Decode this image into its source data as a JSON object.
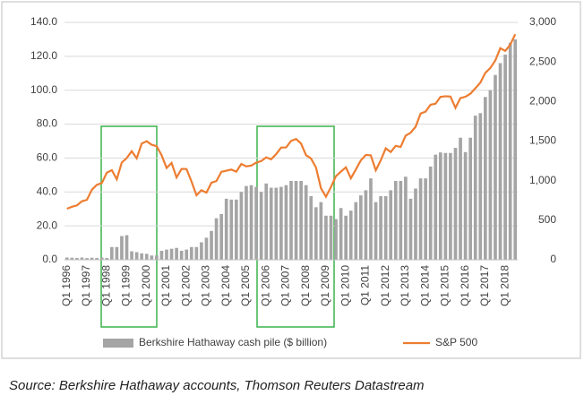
{
  "chart_data": {
    "type": "combo",
    "source": "Source: Berkshire Hathaway accounts, Thomson Reuters Datastream",
    "categories": [
      "Q1 1996",
      null,
      null,
      null,
      "Q1 1997",
      null,
      null,
      null,
      "Q1 1998",
      null,
      null,
      null,
      "Q1 1999",
      null,
      null,
      null,
      "Q1 2000",
      null,
      null,
      null,
      "Q1 2001",
      null,
      null,
      null,
      "Q1 2002",
      null,
      null,
      null,
      "Q1 2003",
      null,
      null,
      null,
      "Q1 2004",
      null,
      null,
      null,
      "Q1 2005",
      null,
      null,
      null,
      "Q1 2006",
      null,
      null,
      null,
      "Q1 2007",
      null,
      null,
      null,
      "Q1 2008",
      null,
      null,
      null,
      "Q1 2009",
      null,
      null,
      null,
      "Q1 2010",
      null,
      null,
      null,
      "Q1 2011",
      null,
      null,
      null,
      "Q1 2012",
      null,
      null,
      null,
      "Q1 2013",
      null,
      null,
      null,
      "Q1 2014",
      null,
      null,
      null,
      "Q1 2015",
      null,
      null,
      null,
      "Q1 2016",
      null,
      null,
      null,
      "Q1 2017",
      null,
      null,
      null,
      "Q1 2018",
      null,
      null
    ],
    "series": [
      {
        "name": "Berkshire Hathaway cash pile ($ billion)",
        "type": "bar",
        "color": "#a5a5a5",
        "values": [
          1.3,
          1.2,
          1.1,
          1.3,
          1.0,
          1.2,
          1.1,
          1.3,
          1.1,
          7.5,
          7.5,
          14,
          14.5,
          5,
          4.5,
          3.8,
          3.5,
          2.5,
          2.5,
          5.3,
          6,
          6.5,
          7,
          5.3,
          6,
          7.5,
          7.5,
          10.3,
          13,
          17,
          24.5,
          27,
          36,
          35.5,
          35.5,
          40,
          43.5,
          44,
          43,
          40,
          45,
          42.5,
          42.5,
          43,
          44,
          46.5,
          46.5,
          46.5,
          44,
          37.5,
          31,
          34,
          26,
          26,
          24,
          30.5,
          26,
          29,
          34,
          38,
          41,
          48,
          34,
          37.5,
          37.5,
          41,
          46.5,
          46.5,
          49,
          36,
          42,
          48,
          48,
          55,
          62,
          63.3,
          63,
          63,
          66,
          72,
          63.5,
          72,
          85,
          86.5,
          96,
          100,
          109,
          116,
          121,
          128,
          130
        ]
      },
      {
        "name": "S&P 500",
        "type": "line",
        "axis": "y2",
        "color": "#ed7d31",
        "values": [
          645,
          670,
          687,
          740,
          757,
          885,
          947,
          970,
          1101,
          1133,
          1017,
          1229,
          1286,
          1372,
          1282,
          1469,
          1498,
          1454,
          1436,
          1320,
          1160,
          1224,
          1040,
          1148,
          1147,
          989,
          815,
          879,
          848,
          974,
          995,
          1111,
          1126,
          1140,
          1114,
          1211,
          1180,
          1191,
          1228,
          1248,
          1294,
          1270,
          1335,
          1418,
          1420,
          1503,
          1526,
          1468,
          1322,
          1280,
          1166,
          903,
          797,
          919,
          1057,
          1115,
          1169,
          1030,
          1141,
          1257,
          1325,
          1320,
          1131,
          1257,
          1408,
          1362,
          1440,
          1426,
          1569,
          1606,
          1681,
          1848,
          1872,
          1960,
          1972,
          2059,
          2067,
          2063,
          1920,
          2044,
          2060,
          2099,
          2168,
          2239,
          2363,
          2423,
          2519,
          2674,
          2640,
          2718,
          2850
        ]
      }
    ],
    "ylim": [
      0,
      140
    ],
    "yticks": [
      {
        "value": 0,
        "label": "0.0"
      },
      {
        "value": 20,
        "label": "20.0"
      },
      {
        "value": 40,
        "label": "40.0"
      },
      {
        "value": 60,
        "label": "60.0"
      },
      {
        "value": 80,
        "label": "80.0"
      },
      {
        "value": 100,
        "label": "100.0"
      },
      {
        "value": 120,
        "label": "120.0"
      },
      {
        "value": 140,
        "label": "140.0"
      }
    ],
    "y2lim": [
      0,
      3000
    ],
    "y2ticks": [
      0,
      500,
      {
        "value": 1000,
        "label": "1,000"
      },
      {
        "value": 1500,
        "label": "1,500"
      },
      {
        "value": 2000,
        "label": "2,000"
      },
      {
        "value": 2500,
        "label": "2,500"
      },
      {
        "value": 3000,
        "label": "3,000"
      }
    ],
    "grid": true,
    "legend": "bottom"
  }
}
